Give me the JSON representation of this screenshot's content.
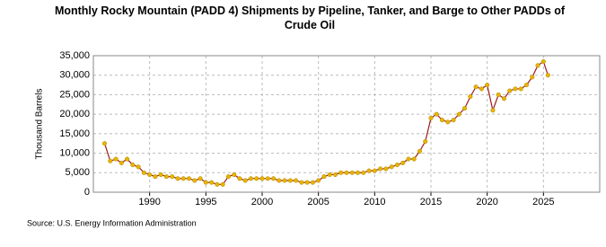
{
  "chart_data": {
    "type": "line",
    "title": "Monthly Rocky Mountain (PADD 4) Shipments by Pipeline, Tanker, and Barge to Other PADDs of Crude Oil",
    "y_label": "Thousand Barrels",
    "source": "Source: U.S. Energy Information Administration",
    "color": "#9b1c1c",
    "marker_color": "#e8b400",
    "x": [
      1986.0,
      1986.5,
      1987.0,
      1987.5,
      1988.0,
      1988.5,
      1989.0,
      1989.5,
      1990.0,
      1990.5,
      1991.0,
      1991.5,
      1992.0,
      1992.5,
      1993.0,
      1993.5,
      1994.0,
      1994.5,
      1995.0,
      1995.5,
      1996.0,
      1996.5,
      1997.0,
      1997.5,
      1998.0,
      1998.5,
      1999.0,
      1999.5,
      2000.0,
      2000.5,
      2001.0,
      2001.5,
      2002.0,
      2002.5,
      2003.0,
      2003.5,
      2004.0,
      2004.5,
      2005.0,
      2005.5,
      2006.0,
      2006.5,
      2007.0,
      2007.5,
      2008.0,
      2008.5,
      2009.0,
      2009.5,
      2010.0,
      2010.5,
      2011.0,
      2011.5,
      2012.0,
      2012.5,
      2013.0,
      2013.5,
      2014.0,
      2014.5,
      2015.0,
      2015.5,
      2016.0,
      2016.5,
      2017.0,
      2017.5,
      2018.0,
      2018.5,
      2019.0,
      2019.5,
      2020.0,
      2020.5,
      2021.0,
      2021.5,
      2022.0,
      2022.5,
      2023.0,
      2023.5,
      2024.0,
      2024.5,
      2025.0,
      2025.4
    ],
    "values": [
      12500,
      8000,
      8500,
      7500,
      8500,
      7000,
      6500,
      5000,
      4500,
      4000,
      4500,
      4000,
      4000,
      3500,
      3500,
      3500,
      3000,
      3500,
      2500,
      2500,
      2000,
      2000,
      4000,
      4500,
      3500,
      3000,
      3500,
      3500,
      3500,
      3500,
      3500,
      3000,
      3000,
      3000,
      3000,
      2500,
      2500,
      2500,
      3000,
      4000,
      4500,
      4500,
      5000,
      5000,
      5000,
      5000,
      5000,
      5500,
      5500,
      6000,
      6000,
      6500,
      7000,
      7500,
      8500,
      8500,
      10500,
      13000,
      19000,
      20000,
      18500,
      18000,
      18500,
      20000,
      21500,
      24500,
      27000,
      26500,
      27500,
      21000,
      25000,
      24000,
      26000,
      26500,
      26500,
      27500,
      29500,
      32500,
      33500,
      30000
    ],
    "xlim": [
      1985,
      2030
    ],
    "xticks": [
      1990,
      1995,
      2000,
      2005,
      2010,
      2015,
      2020,
      2025
    ],
    "ylim": [
      0,
      35000
    ],
    "yticks": [
      0,
      {
        "value": 5000,
        "label": "5,000"
      },
      {
        "value": 10000,
        "label": "10,000"
      },
      {
        "value": 15000,
        "label": "15,000"
      },
      {
        "value": 20000,
        "label": "20,000"
      },
      {
        "value": 25000,
        "label": "25,000"
      },
      {
        "value": 30000,
        "label": "30,000"
      },
      {
        "value": 35000,
        "label": "35,000"
      }
    ],
    "grid": true
  }
}
